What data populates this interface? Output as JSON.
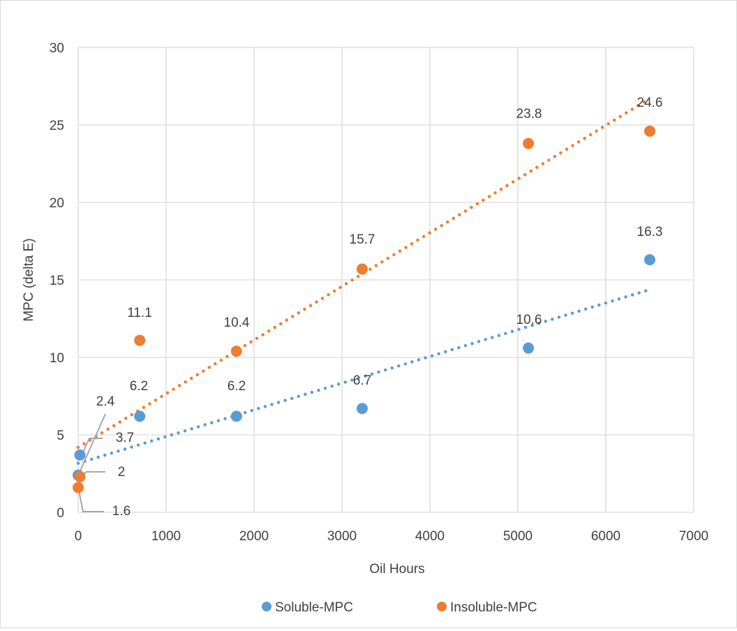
{
  "chart_data": {
    "type": "scatter",
    "xlabel": "Oil Hours",
    "ylabel": "MPC (delta E)",
    "xlim": [
      0,
      7000
    ],
    "ylim": [
      0,
      30
    ],
    "xticks": [
      0,
      1000,
      2000,
      3000,
      4000,
      5000,
      6000,
      7000
    ],
    "yticks": [
      0,
      5,
      10,
      15,
      20,
      25,
      30
    ],
    "grid": true,
    "legend_position": "bottom",
    "trendline": "linear, dotted",
    "series": [
      {
        "name": "Soluble-MPC",
        "color": "#5b9bd5",
        "points": [
          {
            "x": 0,
            "y": 2.4,
            "label": "2.4"
          },
          {
            "x": 20,
            "y": 3.7,
            "label": "3.7"
          },
          {
            "x": 700,
            "y": 6.2,
            "label": "6.2"
          },
          {
            "x": 1800,
            "y": 6.2,
            "label": "6.2"
          },
          {
            "x": 3230,
            "y": 6.7,
            "label": "6.7"
          },
          {
            "x": 5120,
            "y": 10.6,
            "label": "10.6"
          },
          {
            "x": 6500,
            "y": 16.3,
            "label": "16.3"
          }
        ]
      },
      {
        "name": "Insoluble-MPC",
        "color": "#ed7d31",
        "points": [
          {
            "x": 0,
            "y": 1.6,
            "label": "1.6"
          },
          {
            "x": 20,
            "y": 2.3,
            "label": "2"
          },
          {
            "x": 700,
            "y": 11.1,
            "label": "11.1"
          },
          {
            "x": 1800,
            "y": 10.4,
            "label": "10.4"
          },
          {
            "x": 3230,
            "y": 15.7,
            "label": "15.7"
          },
          {
            "x": 5120,
            "y": 23.8,
            "label": "23.8"
          },
          {
            "x": 6500,
            "y": 24.6,
            "label": "24.6"
          }
        ]
      }
    ]
  }
}
